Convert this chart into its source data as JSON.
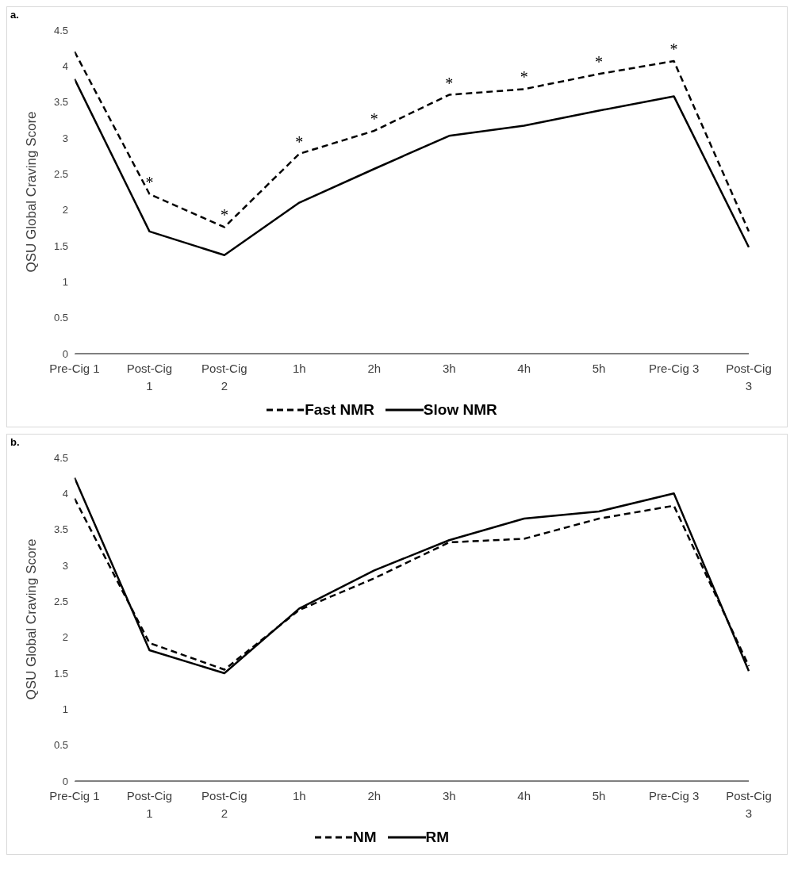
{
  "chart_data": [
    {
      "type": "line",
      "title": "a.",
      "ylabel": "QSU Global Craving Score",
      "categories": [
        "Pre-Cig 1",
        "Post-Cig 1",
        "Post-Cig 2",
        "1h",
        "2h",
        "3h",
        "4h",
        "5h",
        "Pre-Cig 3",
        "Post-Cig 3"
      ],
      "ylim": [
        0,
        4.5
      ],
      "yticks": [
        0,
        0.5,
        1,
        1.5,
        2,
        2.5,
        3,
        3.5,
        4,
        4.5
      ],
      "grid": false,
      "legend": "bottom",
      "marker": "none",
      "series": [
        {
          "name": "Fast NMR",
          "color": "#000000",
          "line_style": "dashed",
          "values": [
            4.2,
            2.22,
            1.76,
            2.78,
            3.1,
            3.6,
            3.68,
            3.89,
            4.07,
            1.7
          ]
        },
        {
          "name": "Slow NMR",
          "color": "#000000",
          "line_style": "solid",
          "values": [
            3.82,
            1.7,
            1.37,
            2.1,
            2.57,
            3.03,
            3.17,
            3.38,
            3.58,
            1.48
          ]
        }
      ],
      "annotations": [
        {
          "text": "*",
          "x": "Post-Cig 1",
          "y": 2.22
        },
        {
          "text": "*",
          "x": "Post-Cig 2",
          "y": 1.76
        },
        {
          "text": "*",
          "x": "1h",
          "y": 2.78
        },
        {
          "text": "*",
          "x": "2h",
          "y": 3.1
        },
        {
          "text": "*",
          "x": "3h",
          "y": 3.6
        },
        {
          "text": "*",
          "x": "4h",
          "y": 3.68
        },
        {
          "text": "*",
          "x": "5h",
          "y": 3.89
        },
        {
          "text": "*",
          "x": "Pre-Cig 3",
          "y": 4.07
        }
      ]
    },
    {
      "type": "line",
      "title": "b.",
      "ylabel": "QSU Global Craving Score",
      "categories": [
        "Pre-Cig 1",
        "Post-Cig 1",
        "Post-Cig 2",
        "1h",
        "2h",
        "3h",
        "4h",
        "5h",
        "Pre-Cig 3",
        "Post-Cig 3"
      ],
      "ylim": [
        0,
        4.5
      ],
      "yticks": [
        0,
        0.5,
        1,
        1.5,
        2,
        2.5,
        3,
        3.5,
        4,
        4.5
      ],
      "grid": false,
      "legend": "bottom",
      "marker": "none",
      "series": [
        {
          "name": "NM",
          "color": "#000000",
          "line_style": "dashed",
          "values": [
            3.93,
            1.92,
            1.55,
            2.38,
            2.82,
            3.32,
            3.37,
            3.65,
            3.83,
            1.6
          ]
        },
        {
          "name": "RM",
          "color": "#000000",
          "line_style": "solid",
          "values": [
            4.22,
            1.82,
            1.5,
            2.4,
            2.93,
            3.35,
            3.65,
            3.75,
            4.0,
            1.53
          ]
        }
      ]
    }
  ]
}
